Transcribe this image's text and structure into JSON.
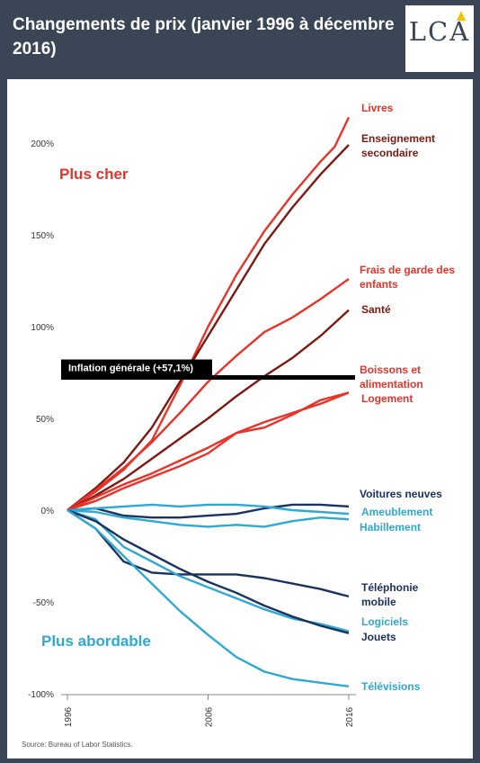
{
  "header": {
    "title": "Changements de prix (janvier 1996 à décembre 2016)",
    "logo": "LCA"
  },
  "source": "Source: Bureau of Labor Statistics.",
  "chart_data": {
    "type": "line",
    "title": "Changements de prix (janvier 1996 à décembre 2016)",
    "xlabel": "",
    "ylabel": "",
    "x_ticks": [
      "1996",
      "2006",
      "2016"
    ],
    "y_ticks": [
      "200%",
      "150%",
      "100%",
      "50%",
      "0%",
      "-50%",
      "-100%"
    ],
    "xlim": [
      1996,
      2016
    ],
    "ylim": [
      -100,
      220
    ],
    "grid": false,
    "annotations": {
      "up": "Plus cher",
      "down": "Plus abordable"
    },
    "reference_line": {
      "label": "Inflation générale (+57,1%)",
      "value": 57.1
    },
    "colors": {
      "red": "#e8332a",
      "darkred": "#7c1a12",
      "lightblue": "#2fa8d2",
      "darkblue": "#1a3260"
    },
    "series": [
      {
        "name": "Livres",
        "color": "red",
        "x": [
          1996,
          1998,
          2000,
          2002,
          2004,
          2006,
          2008,
          2010,
          2012,
          2014,
          2015,
          2016
        ],
        "values": [
          0,
          10,
          22,
          38,
          68,
          100,
          128,
          152,
          172,
          190,
          198,
          214
        ]
      },
      {
        "name": "Enseignement secondaire",
        "color": "darkred",
        "x": [
          1996,
          1998,
          2000,
          2002,
          2004,
          2006,
          2008,
          2010,
          2012,
          2014,
          2016
        ],
        "values": [
          0,
          12,
          26,
          45,
          70,
          95,
          120,
          145,
          165,
          183,
          199
        ]
      },
      {
        "name": "Frais de garde des enfants",
        "color": "red",
        "x": [
          1996,
          1998,
          2000,
          2002,
          2004,
          2006,
          2008,
          2010,
          2012,
          2014,
          2016
        ],
        "values": [
          0,
          11,
          23,
          37,
          53,
          70,
          84,
          97,
          105,
          115,
          126
        ]
      },
      {
        "name": "Santé",
        "color": "darkred",
        "x": [
          1996,
          1998,
          2000,
          2002,
          2004,
          2006,
          2008,
          2010,
          2012,
          2014,
          2016
        ],
        "values": [
          0,
          8,
          17,
          28,
          39,
          50,
          62,
          73,
          83,
          95,
          109
        ]
      },
      {
        "name": "Boissons et alimentation",
        "color": "red",
        "x": [
          1996,
          1998,
          2000,
          2002,
          2004,
          2006,
          2008,
          2010,
          2012,
          2014,
          2016
        ],
        "values": [
          0,
          5,
          12,
          18,
          24,
          31,
          42,
          45,
          52,
          60,
          64
        ]
      },
      {
        "name": "Logement",
        "color": "red",
        "x": [
          1996,
          1998,
          2000,
          2002,
          2004,
          2006,
          2008,
          2010,
          2012,
          2014,
          2016
        ],
        "values": [
          0,
          7,
          14,
          20,
          27,
          34,
          42,
          48,
          53,
          58,
          64
        ]
      },
      {
        "name": "Voitures neuves",
        "color": "darkblue",
        "x": [
          1996,
          1998,
          2000,
          2002,
          2004,
          2006,
          2008,
          2010,
          2012,
          2014,
          2016
        ],
        "values": [
          0,
          1,
          -3,
          -4,
          -4,
          -3,
          -2,
          1,
          3,
          3,
          2
        ]
      },
      {
        "name": "Ameublement",
        "color": "lightblue",
        "x": [
          1996,
          1998,
          2000,
          2002,
          2004,
          2006,
          2008,
          2010,
          2012,
          2014,
          2016
        ],
        "values": [
          0,
          1,
          2,
          3,
          2,
          3,
          3,
          2,
          0,
          -1,
          -2
        ]
      },
      {
        "name": "Habillement",
        "color": "lightblue",
        "x": [
          1996,
          1998,
          2000,
          2002,
          2004,
          2006,
          2008,
          2010,
          2012,
          2014,
          2016
        ],
        "values": [
          0,
          -1,
          -4,
          -6,
          -8,
          -9,
          -8,
          -9,
          -6,
          -4,
          -5
        ]
      },
      {
        "name": "Téléphonie mobile",
        "color": "darkblue",
        "x": [
          1996,
          1998,
          2000,
          2002,
          2004,
          2006,
          2008,
          2010,
          2012,
          2014,
          2016
        ],
        "values": [
          0,
          -10,
          -28,
          -34,
          -35,
          -35,
          -35,
          -37,
          -40,
          -43,
          -47
        ]
      },
      {
        "name": "Logiciels",
        "color": "lightblue",
        "x": [
          1996,
          1998,
          2000,
          2002,
          2004,
          2006,
          2008,
          2010,
          2012,
          2014,
          2016
        ],
        "values": [
          0,
          -5,
          -20,
          -28,
          -36,
          -42,
          -48,
          -54,
          -59,
          -62,
          -66
        ]
      },
      {
        "name": "Jouets",
        "color": "darkblue",
        "x": [
          1996,
          1998,
          2000,
          2002,
          2004,
          2006,
          2008,
          2010,
          2012,
          2014,
          2016
        ],
        "values": [
          0,
          -6,
          -16,
          -24,
          -32,
          -39,
          -45,
          -52,
          -58,
          -63,
          -67
        ]
      },
      {
        "name": "Télévisions",
        "color": "lightblue",
        "x": [
          1996,
          1998,
          2000,
          2002,
          2004,
          2006,
          2008,
          2010,
          2012,
          2014,
          2016
        ],
        "values": [
          0,
          -10,
          -25,
          -40,
          -55,
          -68,
          -80,
          -88,
          -92,
          -94,
          -96
        ]
      }
    ]
  }
}
